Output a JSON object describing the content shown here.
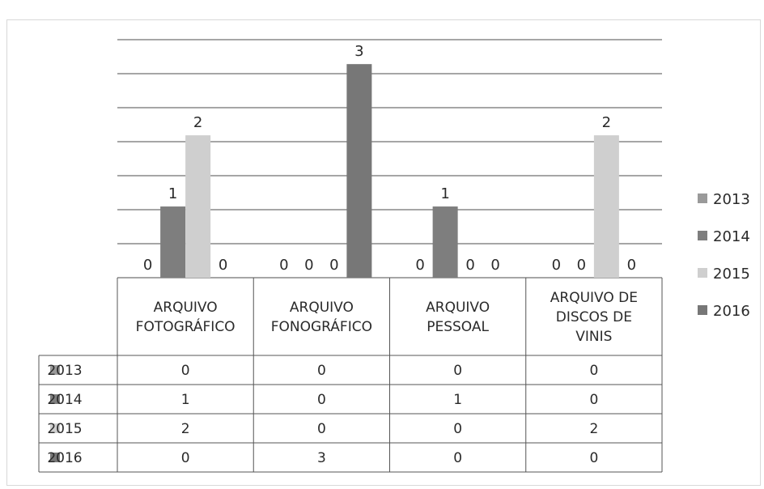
{
  "chart_data": {
    "type": "bar",
    "categories": [
      [
        "ARQUIVO",
        "FOTOGRÁFICO"
      ],
      [
        "ARQUIVO",
        "FONOGRÁFICO"
      ],
      [
        "ARQUIVO",
        "PESSOAL"
      ],
      [
        "ARQUIVO DE",
        "DISCOS DE",
        "VINIS"
      ]
    ],
    "series": [
      {
        "name": "2013",
        "values": [
          0,
          0,
          0,
          0
        ],
        "color": "#9a9a9a"
      },
      {
        "name": "2014",
        "values": [
          1,
          0,
          1,
          0
        ],
        "color": "#7e7e7e"
      },
      {
        "name": "2015",
        "values": [
          2,
          0,
          0,
          2
        ],
        "color": "#cfcfcf"
      },
      {
        "name": "2016",
        "values": [
          0,
          3,
          0,
          0
        ],
        "color": "#777777"
      }
    ],
    "ylim": [
      0,
      3.4
    ],
    "grid": true,
    "legend_position": "right",
    "data_table": true,
    "data_labels": true
  }
}
